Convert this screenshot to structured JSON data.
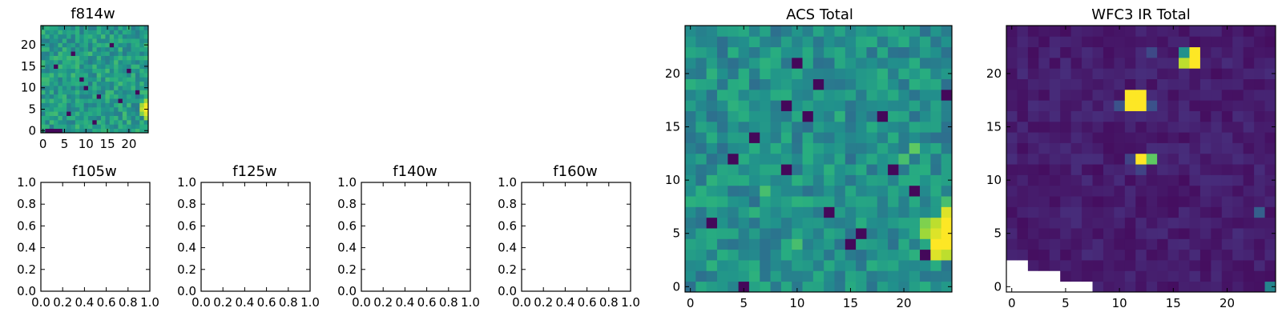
{
  "figure": {
    "background": "#ffffff",
    "colormap": "viridis",
    "colormap_stops": [
      "#440154",
      "#472d7b",
      "#3b528b",
      "#2c728e",
      "#21918c",
      "#28ae80",
      "#5ec962",
      "#addc30",
      "#fde725"
    ]
  },
  "chart_data": [
    {
      "id": "f814w",
      "type": "heatmap",
      "title": "f814w",
      "xlim": [
        0,
        24
      ],
      "ylim": [
        0,
        24
      ],
      "xticks": [
        "0",
        "5",
        "10",
        "15",
        "20"
      ],
      "yticks": [
        "0",
        "5",
        "10",
        "15",
        "20"
      ],
      "grid": false,
      "shape": [
        25,
        25
      ],
      "value_range": [
        0,
        1
      ],
      "typical_value": 0.55,
      "bright_cells": [
        [
          24,
          3,
          0.85
        ],
        [
          24,
          4,
          0.95
        ],
        [
          24,
          5,
          1.0
        ],
        [
          24,
          6,
          0.98
        ],
        [
          24,
          7,
          0.85
        ],
        [
          23,
          4,
          0.8
        ],
        [
          23,
          5,
          0.9
        ],
        [
          23,
          6,
          0.85
        ]
      ],
      "dark_cells": [
        [
          3,
          15
        ],
        [
          7,
          18
        ],
        [
          10,
          10
        ],
        [
          13,
          8
        ],
        [
          6,
          4
        ],
        [
          1,
          0
        ],
        [
          2,
          0
        ],
        [
          3,
          0
        ],
        [
          4,
          0
        ],
        [
          18,
          7
        ],
        [
          9,
          12
        ],
        [
          16,
          20
        ],
        [
          20,
          14
        ],
        [
          12,
          2
        ],
        [
          22,
          9
        ]
      ]
    },
    {
      "id": "f105w",
      "type": "heatmap",
      "title": "f105w",
      "data": [],
      "xlim": [
        0,
        1
      ],
      "ylim": [
        0,
        1
      ],
      "xticks": [
        "0.0",
        "0.2",
        "0.4",
        "0.6",
        "0.8",
        "1.0"
      ],
      "yticks": [
        "0.0",
        "0.2",
        "0.4",
        "0.6",
        "0.8",
        "1.0"
      ]
    },
    {
      "id": "f125w",
      "type": "heatmap",
      "title": "f125w",
      "data": [],
      "xlim": [
        0,
        1
      ],
      "ylim": [
        0,
        1
      ],
      "xticks": [
        "0.0",
        "0.2",
        "0.4",
        "0.6",
        "0.8",
        "1.0"
      ],
      "yticks": [
        "0.0",
        "0.2",
        "0.4",
        "0.6",
        "0.8",
        "1.0"
      ]
    },
    {
      "id": "f140w",
      "type": "heatmap",
      "title": "f140w",
      "data": [],
      "xlim": [
        0,
        1
      ],
      "ylim": [
        0,
        1
      ],
      "xticks": [
        "0.0",
        "0.2",
        "0.4",
        "0.6",
        "0.8",
        "1.0"
      ],
      "yticks": [
        "0.0",
        "0.2",
        "0.4",
        "0.6",
        "0.8",
        "1.0"
      ]
    },
    {
      "id": "f160w",
      "type": "heatmap",
      "title": "f160w",
      "data": [],
      "xlim": [
        0,
        1
      ],
      "ylim": [
        0,
        1
      ],
      "xticks": [
        "0.0",
        "0.2",
        "0.4",
        "0.6",
        "0.8",
        "1.0"
      ],
      "yticks": [
        "0.0",
        "0.2",
        "0.4",
        "0.6",
        "0.8",
        "1.0"
      ]
    },
    {
      "id": "acs",
      "type": "heatmap",
      "title": "ACS Total",
      "xlim": [
        0,
        24
      ],
      "ylim": [
        0,
        24
      ],
      "xticks": [
        "0",
        "5",
        "10",
        "15",
        "20"
      ],
      "yticks": [
        "0",
        "5",
        "10",
        "15",
        "20"
      ],
      "grid": false,
      "shape": [
        25,
        25
      ],
      "value_range": [
        0,
        1
      ],
      "typical_value": 0.5,
      "bright_cells": [
        [
          23,
          3,
          0.95
        ],
        [
          23,
          4,
          1.0
        ],
        [
          23,
          5,
          0.95
        ],
        [
          23,
          6,
          0.9
        ],
        [
          24,
          4,
          1.0
        ],
        [
          24,
          5,
          1.0
        ],
        [
          24,
          6,
          1.0
        ],
        [
          24,
          7,
          0.95
        ],
        [
          24,
          3,
          0.9
        ],
        [
          22,
          5,
          0.85
        ],
        [
          22,
          6,
          0.8
        ],
        [
          24,
          8,
          0.7
        ],
        [
          21,
          13,
          0.75
        ],
        [
          20,
          12,
          0.7
        ],
        [
          7,
          9,
          0.7
        ],
        [
          10,
          4,
          0.7
        ]
      ],
      "dark_cells": [
        [
          10,
          21
        ],
        [
          9,
          17
        ],
        [
          11,
          16
        ],
        [
          4,
          12
        ],
        [
          9,
          11
        ],
        [
          16,
          5
        ],
        [
          5,
          0
        ],
        [
          13,
          7
        ],
        [
          19,
          11
        ],
        [
          21,
          9
        ],
        [
          12,
          19
        ],
        [
          15,
          4
        ],
        [
          18,
          16
        ],
        [
          2,
          6
        ],
        [
          6,
          14
        ],
        [
          22,
          3
        ],
        [
          24,
          18
        ]
      ]
    },
    {
      "id": "wfc3",
      "type": "heatmap",
      "title": "WFC3 IR Total",
      "xlim": [
        0,
        24
      ],
      "ylim": [
        0,
        24
      ],
      "xticks": [
        "0",
        "5",
        "10",
        "15",
        "20"
      ],
      "yticks": [
        "0",
        "5",
        "10",
        "15",
        "20"
      ],
      "grid": false,
      "shape": [
        25,
        25
      ],
      "value_range": [
        0,
        1
      ],
      "typical_value": 0.08,
      "bright_cells": [
        [
          11,
          17,
          1.0
        ],
        [
          12,
          17,
          1.0
        ],
        [
          11,
          18,
          1.0
        ],
        [
          12,
          18,
          1.0
        ],
        [
          12,
          12,
          1.0
        ],
        [
          13,
          12,
          0.75
        ],
        [
          17,
          22,
          1.0
        ],
        [
          17,
          21,
          1.0
        ],
        [
          16,
          21,
          0.9
        ],
        [
          16,
          22,
          0.5
        ],
        [
          10,
          17,
          0.25
        ],
        [
          13,
          17,
          0.25
        ],
        [
          24,
          0,
          0.45
        ],
        [
          23,
          7,
          0.3
        ],
        [
          13,
          22,
          0.22
        ],
        [
          11,
          12,
          0.2
        ],
        [
          12,
          11,
          0.2
        ]
      ],
      "missing_cells": [
        [
          0,
          0
        ],
        [
          1,
          0
        ],
        [
          2,
          0
        ],
        [
          3,
          0
        ],
        [
          4,
          0
        ],
        [
          5,
          0
        ],
        [
          6,
          0
        ],
        [
          7,
          0
        ],
        [
          0,
          1
        ],
        [
          1,
          1
        ],
        [
          2,
          1
        ],
        [
          3,
          1
        ],
        [
          4,
          1
        ],
        [
          0,
          2
        ],
        [
          1,
          2
        ]
      ]
    }
  ]
}
